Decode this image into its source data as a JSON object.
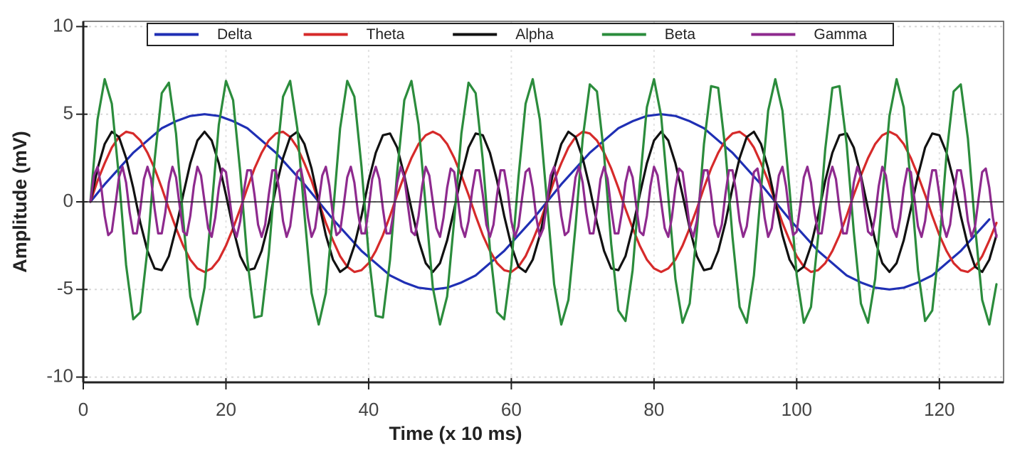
{
  "chart_data": {
    "type": "line",
    "x_label": "Time (x 10 ms)",
    "y_label": "Amplitude (mV)",
    "xlim": [
      0,
      129
    ],
    "ylim": [
      -10.3,
      10.3
    ],
    "xticks": [
      0,
      20,
      40,
      60,
      80,
      100,
      120
    ],
    "yticks": [
      10,
      5,
      0,
      -5,
      -10
    ],
    "grid": true,
    "legend": "top",
    "x": [
      1,
      2,
      3,
      4,
      5,
      6,
      7,
      8,
      9,
      10,
      11,
      12,
      13,
      14,
      15,
      16,
      17,
      18,
      19,
      20,
      21,
      22,
      23,
      24,
      25,
      26,
      27,
      28,
      29,
      30,
      31,
      32,
      33,
      34,
      35,
      36,
      37,
      38,
      39,
      40,
      41,
      42,
      43,
      44,
      45,
      46,
      47,
      48,
      49,
      50,
      51,
      52,
      53,
      54,
      55,
      56,
      57,
      58,
      59,
      60,
      61,
      62,
      63,
      64,
      65,
      66,
      67,
      68,
      69,
      70,
      71,
      72,
      73,
      74,
      75,
      76,
      77,
      78,
      79,
      80,
      81,
      82,
      83,
      84,
      85,
      86,
      87,
      88,
      89,
      90,
      91,
      92,
      93,
      94,
      95,
      96,
      97,
      98,
      99,
      100,
      101,
      102,
      103,
      104,
      105,
      106,
      107,
      108,
      109,
      110,
      111,
      112,
      113,
      114,
      115,
      116,
      117,
      118,
      119,
      120,
      121,
      122,
      123,
      124,
      125,
      126,
      127,
      128
    ],
    "series": [
      {
        "name": "Delta",
        "color": "#1f2fb4",
        "x": [
          1,
          3,
          5,
          7,
          9,
          11,
          13,
          15,
          17,
          19,
          21,
          23,
          25,
          27,
          29,
          31,
          33,
          35,
          37,
          39,
          41,
          43,
          45,
          47,
          49,
          51,
          53,
          55,
          57,
          59,
          61,
          63,
          65,
          67,
          69,
          71,
          73,
          75,
          77,
          79,
          81,
          83,
          85,
          87,
          89,
          91,
          93,
          95,
          97,
          99,
          101,
          103,
          105,
          107,
          109,
          111,
          113,
          115,
          117,
          119,
          121,
          123,
          125,
          127
        ],
        "values": [
          0,
          1,
          1.9,
          2.8,
          3.5,
          4.2,
          4.6,
          4.9,
          5,
          4.9,
          4.6,
          4.2,
          3.5,
          2.8,
          1.9,
          1,
          0,
          -1,
          -1.9,
          -2.8,
          -3.5,
          -4.2,
          -4.6,
          -4.9,
          -5,
          -4.9,
          -4.6,
          -4.2,
          -3.5,
          -2.8,
          -1.9,
          -1,
          0,
          1,
          1.9,
          2.8,
          3.5,
          4.2,
          4.6,
          4.9,
          5,
          4.9,
          4.6,
          4.2,
          3.5,
          2.8,
          1.9,
          1,
          0,
          -1,
          -1.9,
          -2.8,
          -3.5,
          -4.2,
          -4.6,
          -4.9,
          -5,
          -4.9,
          -4.6,
          -4.2,
          -3.5,
          -2.8,
          -1.9,
          -1
        ]
      },
      {
        "name": "Theta",
        "color": "#d62a2a",
        "values": [
          0,
          1.2,
          2.2,
          3.1,
          3.7,
          4,
          3.9,
          3.5,
          2.8,
          1.9,
          0.8,
          -0.4,
          -1.5,
          -2.5,
          -3.3,
          -3.8,
          -4,
          -3.8,
          -3.3,
          -2.5,
          -1.5,
          -0.4,
          0.8,
          1.9,
          2.8,
          3.5,
          3.9,
          4,
          3.7,
          3.1,
          2.2,
          1.2,
          0,
          -1.2,
          -2.2,
          -3.1,
          -3.7,
          -4,
          -3.9,
          -3.5,
          -2.8,
          -1.9,
          -0.8,
          0.4,
          1.5,
          2.5,
          3.3,
          3.8,
          4,
          3.8,
          3.3,
          2.5,
          1.5,
          0.4,
          -0.8,
          -1.9,
          -2.8,
          -3.5,
          -3.9,
          -4,
          -3.7,
          -3.1,
          -2.2,
          -1.2,
          0,
          1.2,
          2.2,
          3.1,
          3.7,
          4,
          3.9,
          3.5,
          2.8,
          1.9,
          0.8,
          -0.4,
          -1.5,
          -2.5,
          -3.3,
          -3.8,
          -4,
          -3.8,
          -3.3,
          -2.5,
          -1.5,
          -0.4,
          0.8,
          1.9,
          2.8,
          3.5,
          3.9,
          4,
          3.7,
          3.1,
          2.2,
          1.2,
          0,
          -1.2,
          -2.2,
          -3.1,
          -3.7,
          -4,
          -3.9,
          -3.5,
          -2.8,
          -1.9,
          -0.8,
          0.4,
          1.5,
          2.5,
          3.3,
          3.8,
          4,
          3.8,
          3.3,
          2.5,
          1.5,
          0.4,
          -0.8,
          -1.9,
          -2.8,
          -3.5,
          -3.9,
          -4,
          -3.7,
          -3.1,
          -2.2,
          -1.2
        ]
      },
      {
        "name": "Alpha",
        "color": "#111111",
        "values": [
          0,
          1.9,
          3.3,
          4,
          3.7,
          2.5,
          0.8,
          -1.2,
          -2.8,
          -3.8,
          -3.9,
          -3.1,
          -1.5,
          0.4,
          2.2,
          3.5,
          4,
          3.5,
          2.2,
          0.4,
          -1.5,
          -3.1,
          -3.9,
          -3.8,
          -2.8,
          -1.2,
          0.8,
          2.5,
          3.7,
          4,
          3.3,
          1.9,
          0,
          -1.9,
          -3.3,
          -4,
          -3.7,
          -2.5,
          -0.8,
          1.2,
          2.8,
          3.8,
          3.9,
          3.1,
          1.5,
          -0.4,
          -2.2,
          -3.5,
          -4,
          -3.5,
          -2.2,
          -0.4,
          1.5,
          3.1,
          3.9,
          3.8,
          2.8,
          1.2,
          -0.8,
          -2.5,
          -3.7,
          -4,
          -3.3,
          -1.9,
          0,
          1.9,
          3.3,
          4,
          3.7,
          2.5,
          0.8,
          -1.2,
          -2.8,
          -3.8,
          -3.9,
          -3.1,
          -1.5,
          0.4,
          2.2,
          3.5,
          4,
          3.5,
          2.2,
          0.4,
          -1.5,
          -3.1,
          -3.9,
          -3.8,
          -2.8,
          -1.2,
          0.8,
          2.5,
          3.7,
          4,
          3.3,
          1.9,
          0,
          -1.9,
          -3.3,
          -4,
          -3.7,
          -2.5,
          -0.8,
          1.2,
          2.8,
          3.8,
          3.9,
          3.1,
          1.5,
          -0.4,
          -2.2,
          -3.5,
          -4,
          -3.5,
          -2.2,
          -0.4,
          1.5,
          3.1,
          3.9,
          3.8,
          2.8,
          1.2,
          -0.8,
          -2.5,
          -3.7,
          -4,
          -3.3,
          -1.9
        ]
      },
      {
        "name": "Beta",
        "color": "#2b8c3c",
        "values": [
          0,
          4.7,
          7,
          5.6,
          1.4,
          -3.6,
          -6.7,
          -6.3,
          -2.7,
          2.4,
          6.2,
          6.8,
          3.9,
          -1,
          -5.4,
          -7,
          -4.9,
          -0.3,
          4.4,
          6.9,
          5.8,
          1.7,
          -3.3,
          -6.6,
          -6.5,
          -3,
          2,
          6,
          6.9,
          4.2,
          -0.7,
          -5.2,
          -7,
          -5.2,
          -0.7,
          4.2,
          6.9,
          6,
          2,
          -3,
          -6.5,
          -6.6,
          -3.3,
          1.7,
          5.8,
          6.9,
          4.4,
          -0.3,
          -4.9,
          -7,
          -5.4,
          -1,
          3.9,
          6.8,
          6.2,
          2.4,
          -2.7,
          -6.3,
          -6.7,
          -3.6,
          1.4,
          5.6,
          7,
          4.7,
          0,
          -4.7,
          -7,
          -5.6,
          -1.4,
          3.6,
          6.7,
          6.3,
          2.7,
          -2.4,
          -6.2,
          -6.8,
          -3.9,
          1,
          5.4,
          7,
          4.9,
          0.3,
          -4.4,
          -6.9,
          -5.8,
          -1.7,
          3.3,
          6.6,
          6.5,
          3,
          -2,
          -6,
          -6.9,
          -4.2,
          0.7,
          5.2,
          7,
          5.2,
          0.7,
          -4.2,
          -6.9,
          -6,
          -2,
          3,
          6.5,
          6.6,
          3.3,
          -1.7,
          -5.8,
          -6.9,
          -4.4,
          0.3,
          4.9,
          7,
          5.4,
          1,
          -3.9,
          -6.8,
          -6.2,
          -2.4,
          2.7,
          6.3,
          6.7,
          3.6,
          -1.4,
          -5.6,
          -7,
          -4.7
        ]
      },
      {
        "name": "Gamma",
        "color": "#8e2a8e",
        "x": [
          1,
          1.5,
          2,
          2.5,
          3,
          3.5,
          4,
          4.5,
          5,
          5.5,
          6,
          6.5,
          7,
          7.5,
          8,
          8.5,
          9,
          9.5,
          10,
          10.5,
          11,
          11.5,
          12,
          12.5,
          13,
          13.5,
          14,
          14.5,
          15,
          15.5,
          16,
          16.5,
          17,
          17.5,
          18,
          18.5,
          19,
          19.5,
          20,
          20.5,
          21,
          21.5,
          22,
          22.5,
          23,
          23.5,
          24,
          24.5,
          25,
          25.5,
          26,
          26.5,
          27,
          27.5,
          28,
          28.5,
          29,
          29.5,
          30,
          30.5,
          31,
          31.5,
          32,
          32.5,
          33,
          33.5,
          34,
          34.5,
          35,
          35.5,
          36,
          36.5,
          37,
          37.5,
          38,
          38.5,
          39,
          39.5,
          40,
          40.5,
          41,
          41.5,
          42,
          42.5,
          43,
          43.5,
          44,
          44.5,
          45,
          45.5,
          46,
          46.5,
          47,
          47.5,
          48,
          48.5,
          49,
          49.5,
          50,
          50.5,
          51,
          51.5,
          52,
          52.5,
          53,
          53.5,
          54,
          54.5,
          55,
          55.5,
          56,
          56.5,
          57,
          57.5,
          58,
          58.5,
          59,
          59.5,
          60,
          60.5,
          61,
          61.5,
          62,
          62.5,
          63,
          63.5,
          64,
          64.5,
          65,
          65.5,
          66,
          66.5,
          67,
          67.5,
          68,
          68.5,
          69,
          69.5,
          70,
          70.5,
          71,
          71.5,
          72,
          72.5,
          73,
          73.5,
          74,
          74.5,
          75,
          75.5,
          76,
          76.5,
          77,
          77.5,
          78,
          78.5,
          79,
          79.5,
          80,
          80.5,
          81,
          81.5,
          82,
          82.5,
          83,
          83.5,
          84,
          84.5,
          85,
          85.5,
          86,
          86.5,
          87,
          87.5,
          88,
          88.5,
          89,
          89.5,
          90,
          90.5,
          91,
          91.5,
          92,
          92.5,
          93,
          93.5,
          94,
          94.5,
          95,
          95.5,
          96,
          96.5,
          97,
          97.5,
          98,
          98.5,
          99,
          99.5,
          100,
          100.5,
          101,
          101.5,
          102,
          102.5,
          103,
          103.5,
          104,
          104.5,
          105,
          105.5,
          106,
          106.5,
          107,
          107.5,
          108,
          108.5,
          109,
          109.5,
          110,
          110.5,
          111,
          111.5,
          112,
          112.5,
          113,
          113.5,
          114,
          114.5,
          115,
          115.5,
          116,
          116.5,
          117,
          117.5,
          118,
          118.5,
          119,
          119.5,
          120,
          120.5,
          121,
          121.5,
          122,
          122.5,
          123,
          123.5,
          124,
          124.5,
          125,
          125.5,
          126,
          126.5,
          127,
          127.5,
          128
        ],
        "values": [
          0,
          1.5,
          2,
          0.9,
          -0.8,
          -1.9,
          -1.7,
          -0.2,
          1.4,
          2,
          1.1,
          -0.6,
          -1.8,
          -1.8,
          -0.4,
          1.3,
          2,
          1.3,
          -0.4,
          -1.8,
          -1.8,
          -0.6,
          1.1,
          2,
          1.4,
          -0.2,
          -1.7,
          -1.9,
          -0.8,
          0.9,
          2,
          1.5,
          0,
          -1.5,
          -2,
          -0.9,
          0.8,
          1.9,
          1.7,
          0.2,
          -1.4,
          -2,
          -1.1,
          0.6,
          1.8,
          1.8,
          0.4,
          -1.3,
          -2,
          -1.3,
          0.4,
          1.8,
          1.8,
          0.6,
          -1.1,
          -2,
          -1.4,
          0.2,
          1.7,
          1.9,
          0.8,
          -0.9,
          -2,
          -1.5,
          0,
          1.5,
          2,
          0.9,
          -0.8,
          -1.9,
          -1.7,
          -0.2,
          1.4,
          2,
          1.1,
          -0.6,
          -1.8,
          -1.8,
          -0.4,
          1.3,
          2,
          1.3,
          -0.4,
          -1.8,
          -1.8,
          -0.6,
          1.1,
          2,
          1.4,
          -0.2,
          -1.7,
          -1.9,
          -0.8,
          0.9,
          2,
          1.5,
          0,
          -1.5,
          -2,
          -0.9,
          0.8,
          1.9,
          1.7,
          0.2,
          -1.4,
          -2,
          -1.1,
          0.6,
          1.8,
          1.8,
          0.4,
          -1.3,
          -2,
          -1.3,
          0.4,
          1.8,
          1.8,
          0.6,
          -1.1,
          -2,
          -1.4,
          0.2,
          1.7,
          1.9,
          0.8,
          -0.9,
          -2,
          -1.5,
          0,
          1.5,
          2,
          0.9,
          -0.8,
          -1.9,
          -1.7,
          -0.2,
          1.4,
          2,
          1.1,
          -0.6,
          -1.8,
          -1.8,
          -0.4,
          1.3,
          2,
          1.3,
          -0.4,
          -1.8,
          -1.8,
          -0.6,
          1.1,
          2,
          1.4,
          -0.2,
          -1.7,
          -1.9,
          -0.8,
          0.9,
          2,
          1.5,
          0,
          -1.5,
          -2,
          -0.9,
          0.8,
          1.9,
          1.7,
          0.2,
          -1.4,
          -2,
          -1.1,
          0.6,
          1.8,
          1.8,
          0.4,
          -1.3,
          -2,
          -1.3,
          0.4,
          1.8,
          1.8,
          0.6,
          -1.1,
          -2,
          -1.4,
          0.2,
          1.7,
          1.9,
          0.8,
          -0.9,
          -2,
          -1.5,
          0,
          1.5,
          2,
          0.9,
          -0.8,
          -1.9,
          -1.7,
          -0.2,
          1.4,
          2,
          1.1,
          -0.6,
          -1.8,
          -1.8,
          -0.4,
          1.3,
          2,
          1.3,
          -0.4,
          -1.8,
          -1.8,
          -0.6,
          1.1,
          2,
          1.4,
          -0.2,
          -1.7,
          -1.9,
          -0.8,
          0.9,
          2,
          1.5,
          0,
          -1.5,
          -2,
          -0.9,
          0.8,
          1.9,
          1.7,
          0.2,
          -1.4,
          -2,
          -1.1,
          0.6,
          1.8,
          1.8,
          0.4,
          -1.3,
          -2,
          -1.3,
          0.4,
          1.8,
          1.8,
          0.6,
          -1.1,
          -2,
          -1.4,
          0.2,
          1.7,
          1.9,
          0.8,
          -0.9,
          -2
        ]
      }
    ]
  }
}
